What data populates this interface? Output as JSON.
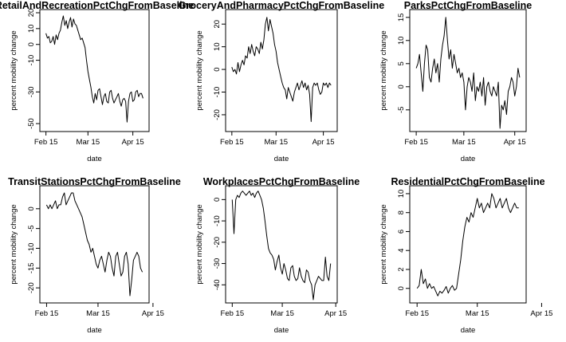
{
  "figure": {
    "ylabel": "percent mobility change",
    "xlabel": "date",
    "line_color": "#000000"
  },
  "chart_data": [
    {
      "type": "line",
      "title": "RetailAndRecreationPctChgFromBaseline",
      "xlabel": "date",
      "ylabel": "percent mobility change",
      "x_start": "2020-02-15",
      "x_ticks": [
        "Feb 15",
        "Mar 15",
        "Apr 15"
      ],
      "y_ticks": [
        -50,
        -30,
        -10,
        0,
        10,
        20
      ],
      "ylim": [
        -53,
        20
      ],
      "values": [
        7,
        4,
        5,
        1,
        2,
        5,
        0,
        6,
        3,
        7,
        9,
        14,
        18,
        12,
        15,
        10,
        14,
        17,
        11,
        16,
        13,
        12,
        9,
        6,
        3,
        4,
        1,
        -2,
        -10,
        -17,
        -22,
        -27,
        -33,
        -37,
        -31,
        -35,
        -29,
        -28,
        -33,
        -38,
        -33,
        -31,
        -36,
        -37,
        -30,
        -29,
        -34,
        -37,
        -35,
        -33,
        -31,
        -36,
        -39,
        -35,
        -34,
        -36,
        -49,
        -36,
        -31,
        -30,
        -36,
        -35,
        -30,
        -29,
        -33,
        -31,
        -31,
        -34
      ]
    },
    {
      "type": "line",
      "title": "GroceryAndPharmacyPctChgFromBaseline",
      "xlabel": "date",
      "ylabel": "percent mobility change",
      "x_start": "2020-02-15",
      "x_ticks": [
        "Feb 15",
        "Mar 15",
        "Apr 15"
      ],
      "y_ticks": [
        -20,
        -10,
        0,
        10,
        20
      ],
      "ylim": [
        -26,
        25
      ],
      "values": [
        1,
        -1,
        0,
        -2,
        3,
        -1,
        2,
        4,
        2,
        6,
        5,
        10,
        7,
        11,
        8,
        6,
        10,
        9,
        7,
        12,
        9,
        13,
        20,
        23,
        17,
        22,
        19,
        16,
        11,
        8,
        3,
        0,
        -3,
        -6,
        -8,
        -9,
        -13,
        -8,
        -10,
        -12,
        -14,
        -10,
        -8,
        -6,
        -9,
        -7,
        -5,
        -8,
        -6,
        -9,
        -7,
        -11,
        -23,
        -8,
        -6,
        -7,
        -6,
        -9,
        -11,
        -10,
        -6,
        -7,
        -6,
        -8,
        -6,
        -7
      ]
    },
    {
      "type": "line",
      "title": "ParksPctChgFromBaseline",
      "xlabel": "date",
      "ylabel": "percent mobility change",
      "x_start": "2020-02-15",
      "x_ticks": [
        "Feb 15",
        "Mar 15",
        "Apr 15"
      ],
      "y_ticks": [
        -5,
        0,
        5,
        10,
        15
      ],
      "ylim": [
        -9,
        16
      ],
      "values": [
        4,
        5,
        7,
        3,
        -1,
        5,
        9,
        8,
        2,
        1,
        4,
        6,
        3,
        5,
        1,
        6,
        9,
        11,
        15,
        10,
        6,
        8,
        4,
        7,
        5,
        3,
        4,
        2,
        3,
        1,
        -5,
        0,
        2,
        1,
        -1,
        3,
        -3,
        0,
        -1,
        1,
        -2,
        2,
        -4,
        0,
        1,
        -1,
        -2,
        0,
        -1,
        -2,
        1,
        -9,
        -4,
        -5,
        -3,
        -6,
        -1,
        0,
        2,
        1,
        -2,
        0,
        4,
        2
      ]
    },
    {
      "type": "line",
      "title": "TransitStationsPctChgFromBaseline",
      "xlabel": "date",
      "ylabel": "percent mobility change",
      "x_start": "2020-02-15",
      "x_ticks": [
        "Feb 15",
        "Mar 15",
        "Apr 15"
      ],
      "y_ticks": [
        -20,
        -15,
        -10,
        -5,
        0
      ],
      "ylim": [
        -23,
        5
      ],
      "values": [
        1,
        0,
        1,
        0,
        1,
        2,
        0,
        1,
        1,
        3,
        4,
        1,
        2,
        3,
        4,
        4,
        2,
        1,
        0,
        -1,
        -2,
        -4,
        -6,
        -8,
        -9,
        -11,
        -10,
        -12,
        -14,
        -15,
        -13,
        -12,
        -14,
        -16,
        -13,
        -11,
        -12,
        -15,
        -17,
        -12,
        -11,
        -14,
        -17,
        -16,
        -12,
        -11,
        -14,
        -22,
        -18,
        -13,
        -12,
        -11,
        -12,
        -15,
        -16
      ]
    },
    {
      "type": "line",
      "title": "WorkplacesPctChgFromBaseline",
      "xlabel": "date",
      "ylabel": "percent mobility change",
      "x_start": "2020-02-15",
      "x_ticks": [
        "Feb 15",
        "Mar 15",
        "Apr 15"
      ],
      "y_ticks": [
        -40,
        -30,
        -20,
        -10,
        0
      ],
      "ylim": [
        -47,
        5
      ],
      "values": [
        0,
        -16,
        0,
        2,
        1,
        3,
        4,
        3,
        2,
        3,
        4,
        2,
        3,
        1,
        3,
        4,
        2,
        0,
        -4,
        -10,
        -17,
        -23,
        -25,
        -26,
        -28,
        -33,
        -29,
        -26,
        -32,
        -35,
        -30,
        -33,
        -37,
        -38,
        -32,
        -31,
        -36,
        -38,
        -37,
        -32,
        -36,
        -38,
        -39,
        -33,
        -34,
        -38,
        -40,
        -47,
        -40,
        -38,
        -36,
        -37,
        -38,
        -38,
        -27,
        -36,
        -38,
        -30
      ]
    },
    {
      "type": "line",
      "title": "ResidentialPctChgFromBaseline",
      "xlabel": "date",
      "ylabel": "percent mobility change",
      "x_start": "2020-02-15",
      "x_ticks": [
        "Feb 15",
        "Mar 15",
        "Apr 15"
      ],
      "y_ticks": [
        0,
        2,
        4,
        6,
        8,
        10
      ],
      "ylim": [
        -1.2,
        10.5
      ],
      "values": [
        0,
        0.3,
        2,
        0.5,
        1,
        0,
        0.5,
        0,
        0.2,
        -0.3,
        -0.8,
        -0.3,
        -0.5,
        -0.2,
        0.2,
        -0.5,
        0,
        0.3,
        -0.2,
        0,
        1.5,
        3,
        5,
        6.5,
        7.5,
        7,
        8,
        7.5,
        8.5,
        9.5,
        8.5,
        9,
        8,
        8.5,
        9,
        8.5,
        10,
        9.5,
        8.5,
        9,
        9.5,
        8.5,
        9,
        9.5,
        8.5,
        8,
        8.5,
        9,
        8.5,
        8.5
      ]
    }
  ]
}
